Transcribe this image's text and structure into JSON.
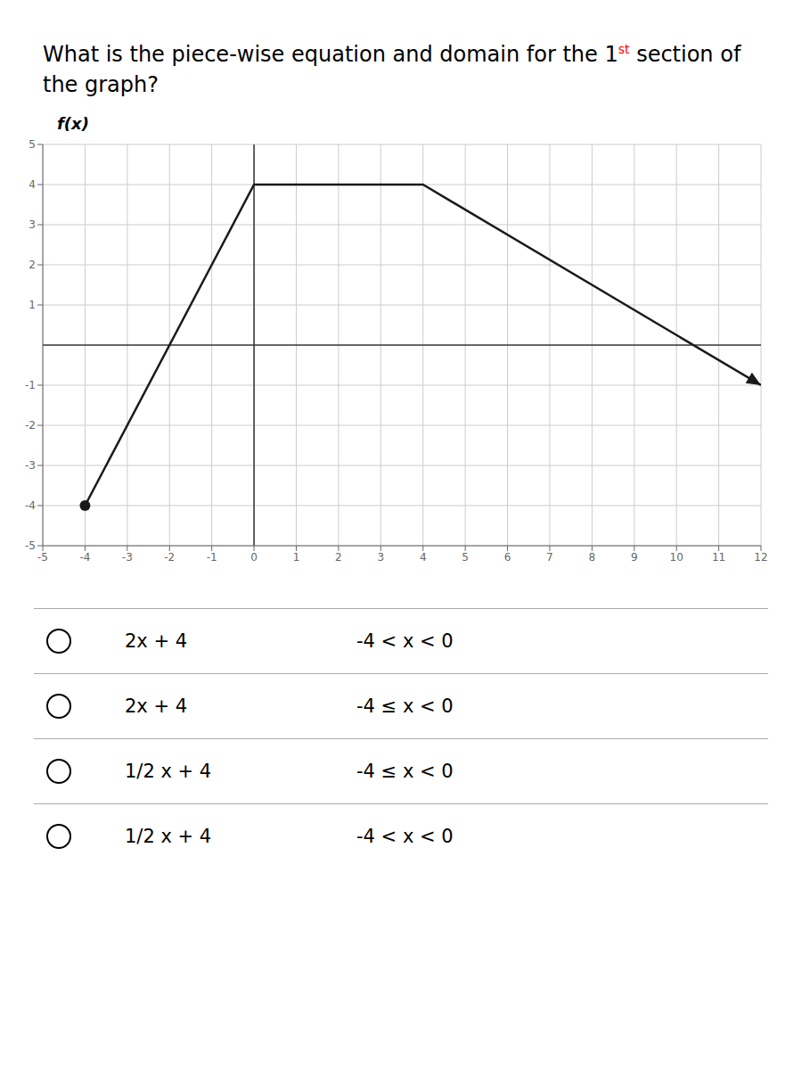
{
  "chart_data": {
    "type": "line",
    "title": "What is the piece-wise equation and domain for the 1st section of the graph?",
    "ylabel": "f(x)",
    "x": [
      -4,
      0,
      4,
      12
    ],
    "values": [
      -4,
      4,
      4,
      -1
    ],
    "color": "#1a1a1a",
    "xlim": [
      -5,
      12
    ],
    "xticks": [
      -5,
      -4,
      -3,
      -2,
      -1,
      0,
      1,
      2,
      3,
      4,
      5,
      6,
      7,
      8,
      9,
      10,
      11,
      12
    ],
    "ylim": [
      -5,
      5
    ],
    "yticks": [
      -5,
      -4,
      -3,
      -2,
      -1,
      1,
      2,
      3,
      4,
      5
    ],
    "grid": true,
    "annotations": [
      [
        "2x + 4",
        "-4 < x < 0"
      ],
      [
        "2x + 4",
        "-4 ≤ x < 0"
      ],
      [
        "1/2 x + 4",
        "-4 ≤ x < 0"
      ],
      [
        "1/2 x + 4",
        "-4 < x < 0"
      ]
    ]
  }
}
